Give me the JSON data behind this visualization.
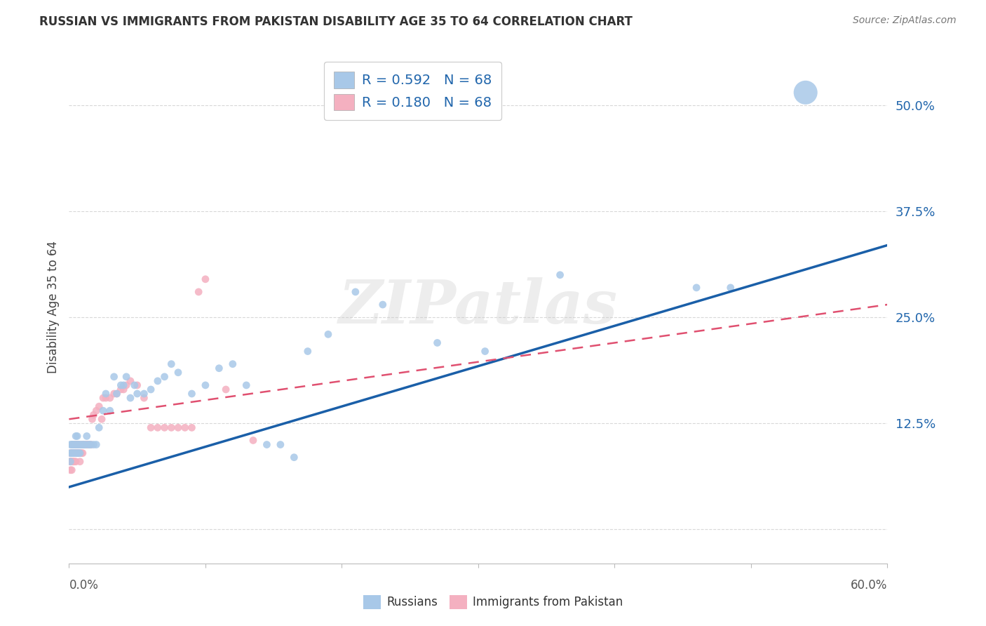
{
  "title": "RUSSIAN VS IMMIGRANTS FROM PAKISTAN DISABILITY AGE 35 TO 64 CORRELATION CHART",
  "source": "Source: ZipAtlas.com",
  "ylabel": "Disability Age 35 to 64",
  "watermark": "ZIPatlas",
  "R_russian": 0.592,
  "R_pakistan": 0.18,
  "N_russian": 68,
  "N_pakistan": 68,
  "xmin": 0.0,
  "xmax": 0.6,
  "ymin": -0.04,
  "ymax": 0.565,
  "xtick_left_label": "0.0%",
  "xtick_right_label": "60.0%",
  "yticks": [
    0.0,
    0.125,
    0.25,
    0.375,
    0.5
  ],
  "ytick_labels": [
    "",
    "12.5%",
    "25.0%",
    "37.5%",
    "50.0%"
  ],
  "grid_color": "#d8d8d8",
  "blue_color": "#a8c8e8",
  "pink_color": "#f4b0c0",
  "blue_line_color": "#1a5fa8",
  "pink_line_color": "#e05070",
  "legend_label_russian_name": "Russians",
  "legend_label_pakistan_name": "Immigrants from Pakistan",
  "blue_line_x0": 0.0,
  "blue_line_y0": 0.05,
  "blue_line_x1": 0.6,
  "blue_line_y1": 0.335,
  "pink_line_x0": 0.0,
  "pink_line_x1": 0.6,
  "pink_line_y0": 0.13,
  "pink_line_y1": 0.265,
  "russian_x": [
    0.001,
    0.001,
    0.001,
    0.002,
    0.002,
    0.002,
    0.003,
    0.003,
    0.003,
    0.003,
    0.004,
    0.004,
    0.005,
    0.005,
    0.005,
    0.006,
    0.006,
    0.006,
    0.007,
    0.007,
    0.008,
    0.008,
    0.009,
    0.01,
    0.011,
    0.012,
    0.013,
    0.014,
    0.015,
    0.016,
    0.018,
    0.02,
    0.022,
    0.025,
    0.027,
    0.03,
    0.033,
    0.035,
    0.038,
    0.04,
    0.042,
    0.045,
    0.048,
    0.05,
    0.055,
    0.06,
    0.065,
    0.07,
    0.075,
    0.08,
    0.09,
    0.1,
    0.11,
    0.12,
    0.13,
    0.145,
    0.155,
    0.165,
    0.175,
    0.19,
    0.21,
    0.23,
    0.27,
    0.305,
    0.36,
    0.46,
    0.485,
    0.54
  ],
  "russian_y": [
    0.08,
    0.09,
    0.1,
    0.09,
    0.1,
    0.1,
    0.09,
    0.1,
    0.09,
    0.1,
    0.09,
    0.1,
    0.09,
    0.1,
    0.11,
    0.09,
    0.1,
    0.11,
    0.09,
    0.1,
    0.1,
    0.09,
    0.1,
    0.1,
    0.1,
    0.1,
    0.11,
    0.1,
    0.1,
    0.1,
    0.1,
    0.1,
    0.12,
    0.14,
    0.16,
    0.14,
    0.18,
    0.16,
    0.17,
    0.17,
    0.18,
    0.155,
    0.17,
    0.16,
    0.16,
    0.165,
    0.175,
    0.18,
    0.195,
    0.185,
    0.16,
    0.17,
    0.19,
    0.195,
    0.17,
    0.1,
    0.1,
    0.085,
    0.21,
    0.23,
    0.28,
    0.265,
    0.22,
    0.21,
    0.3,
    0.285,
    0.285,
    0.515
  ],
  "russian_size": [
    60,
    60,
    60,
    60,
    60,
    60,
    60,
    60,
    60,
    60,
    60,
    60,
    60,
    60,
    60,
    60,
    60,
    60,
    60,
    60,
    60,
    60,
    60,
    60,
    60,
    60,
    60,
    60,
    60,
    60,
    60,
    60,
    60,
    60,
    60,
    60,
    60,
    60,
    60,
    60,
    60,
    60,
    60,
    60,
    60,
    60,
    60,
    60,
    60,
    60,
    60,
    60,
    60,
    60,
    60,
    60,
    60,
    60,
    60,
    60,
    60,
    60,
    60,
    60,
    60,
    60,
    60,
    600
  ],
  "pakistan_x": [
    0.001,
    0.001,
    0.001,
    0.001,
    0.002,
    0.002,
    0.002,
    0.002,
    0.003,
    0.003,
    0.003,
    0.003,
    0.003,
    0.004,
    0.004,
    0.004,
    0.004,
    0.005,
    0.005,
    0.005,
    0.005,
    0.005,
    0.006,
    0.006,
    0.006,
    0.006,
    0.007,
    0.007,
    0.007,
    0.008,
    0.008,
    0.009,
    0.009,
    0.01,
    0.01,
    0.011,
    0.012,
    0.013,
    0.014,
    0.015,
    0.016,
    0.017,
    0.018,
    0.02,
    0.022,
    0.024,
    0.025,
    0.027,
    0.03,
    0.033,
    0.035,
    0.038,
    0.04,
    0.042,
    0.045,
    0.05,
    0.055,
    0.06,
    0.065,
    0.07,
    0.075,
    0.08,
    0.085,
    0.09,
    0.095,
    0.1,
    0.115,
    0.135
  ],
  "pakistan_y": [
    0.07,
    0.08,
    0.08,
    0.09,
    0.07,
    0.08,
    0.09,
    0.09,
    0.08,
    0.08,
    0.09,
    0.09,
    0.1,
    0.08,
    0.09,
    0.09,
    0.1,
    0.08,
    0.09,
    0.09,
    0.1,
    0.1,
    0.09,
    0.09,
    0.1,
    0.1,
    0.09,
    0.1,
    0.1,
    0.08,
    0.09,
    0.09,
    0.1,
    0.09,
    0.1,
    0.1,
    0.1,
    0.1,
    0.1,
    0.1,
    0.1,
    0.13,
    0.135,
    0.14,
    0.145,
    0.13,
    0.155,
    0.155,
    0.155,
    0.16,
    0.16,
    0.165,
    0.165,
    0.17,
    0.175,
    0.17,
    0.155,
    0.12,
    0.12,
    0.12,
    0.12,
    0.12,
    0.12,
    0.12,
    0.28,
    0.295,
    0.165,
    0.105
  ],
  "pakistan_size": [
    60,
    60,
    60,
    60,
    60,
    60,
    60,
    60,
    60,
    60,
    60,
    60,
    60,
    60,
    60,
    60,
    60,
    60,
    60,
    60,
    60,
    60,
    60,
    60,
    60,
    60,
    60,
    60,
    60,
    60,
    60,
    60,
    60,
    60,
    60,
    60,
    60,
    60,
    60,
    60,
    60,
    60,
    60,
    60,
    60,
    60,
    60,
    60,
    60,
    60,
    60,
    60,
    60,
    60,
    60,
    60,
    60,
    60,
    60,
    60,
    60,
    60,
    60,
    60,
    60,
    60,
    60,
    60
  ]
}
